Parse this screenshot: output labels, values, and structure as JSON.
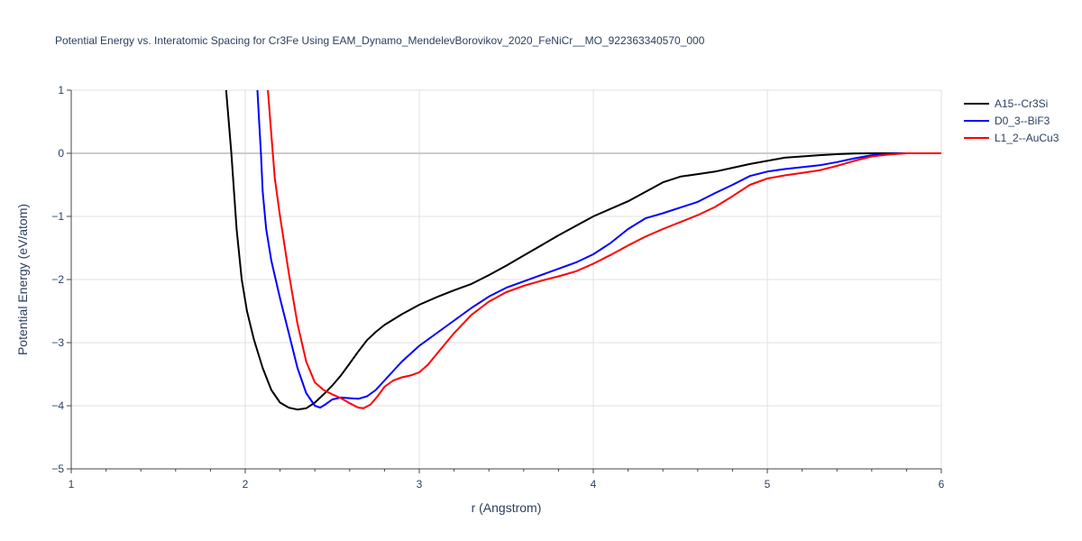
{
  "chart_data": {
    "type": "line",
    "title": "Potential Energy vs. Interatomic Spacing for Cr3Fe Using EAM_Dynamo_MendelevBorovikov_2020_FeNiCr__MO_922363340570_000",
    "xlabel": "r (Angstrom)",
    "ylabel": "Potential Energy (eV/atom)",
    "xlim": [
      1,
      6
    ],
    "ylim": [
      -5,
      1
    ],
    "xticks": [
      1,
      2,
      3,
      4,
      5,
      6
    ],
    "yticks": [
      -5,
      -4,
      -3,
      -2,
      -1,
      0,
      1
    ],
    "xtick_labels": [
      "1",
      "2",
      "3",
      "4",
      "5",
      "6"
    ],
    "ytick_labels": [
      "−5",
      "−4",
      "−3",
      "−2",
      "−1",
      "0",
      "1"
    ],
    "grid": true,
    "legend_position": "top-right",
    "series": [
      {
        "name": "A15--Cr3Si",
        "color": "#000000",
        "x": [
          1.89,
          1.92,
          1.95,
          1.98,
          2.01,
          2.05,
          2.1,
          2.15,
          2.2,
          2.25,
          2.3,
          2.35,
          2.4,
          2.45,
          2.5,
          2.55,
          2.6,
          2.65,
          2.7,
          2.75,
          2.8,
          2.9,
          3.0,
          3.1,
          3.2,
          3.3,
          3.4,
          3.5,
          3.6,
          3.7,
          3.8,
          3.9,
          4.0,
          4.1,
          4.2,
          4.3,
          4.4,
          4.5,
          4.6,
          4.7,
          4.8,
          4.9,
          5.0,
          5.1,
          5.2,
          5.3,
          5.4,
          5.5,
          5.6,
          5.7,
          5.8,
          6.0
        ],
        "y": [
          1.0,
          0.0,
          -1.2,
          -2.0,
          -2.5,
          -2.95,
          -3.4,
          -3.75,
          -3.95,
          -4.03,
          -4.06,
          -4.04,
          -3.95,
          -3.82,
          -3.68,
          -3.52,
          -3.33,
          -3.14,
          -2.96,
          -2.83,
          -2.72,
          -2.55,
          -2.4,
          -2.28,
          -2.17,
          -2.07,
          -1.93,
          -1.78,
          -1.62,
          -1.46,
          -1.3,
          -1.15,
          -1.0,
          -0.88,
          -0.76,
          -0.61,
          -0.46,
          -0.37,
          -0.33,
          -0.29,
          -0.23,
          -0.17,
          -0.12,
          -0.07,
          -0.05,
          -0.03,
          -0.015,
          -0.005,
          0.0,
          0.0,
          0.0,
          0.0
        ]
      },
      {
        "name": "D0_3--BiF3",
        "color": "#0000ff",
        "x": [
          2.07,
          2.08,
          2.09,
          2.1,
          2.12,
          2.15,
          2.2,
          2.25,
          2.3,
          2.35,
          2.4,
          2.43,
          2.46,
          2.5,
          2.55,
          2.6,
          2.65,
          2.7,
          2.75,
          2.8,
          2.9,
          3.0,
          3.1,
          3.2,
          3.3,
          3.4,
          3.5,
          3.6,
          3.7,
          3.8,
          3.9,
          4.0,
          4.1,
          4.2,
          4.3,
          4.4,
          4.5,
          4.6,
          4.7,
          4.8,
          4.9,
          5.0,
          5.1,
          5.2,
          5.3,
          5.4,
          5.5,
          5.6,
          5.7,
          5.8,
          6.0
        ],
        "y": [
          1.0,
          0.5,
          0.0,
          -0.6,
          -1.2,
          -1.7,
          -2.3,
          -2.85,
          -3.4,
          -3.8,
          -4.0,
          -4.03,
          -3.98,
          -3.9,
          -3.87,
          -3.88,
          -3.89,
          -3.85,
          -3.75,
          -3.6,
          -3.3,
          -3.05,
          -2.85,
          -2.65,
          -2.45,
          -2.27,
          -2.13,
          -2.03,
          -1.93,
          -1.83,
          -1.73,
          -1.6,
          -1.42,
          -1.2,
          -1.03,
          -0.95,
          -0.86,
          -0.77,
          -0.63,
          -0.5,
          -0.36,
          -0.29,
          -0.25,
          -0.22,
          -0.19,
          -0.14,
          -0.08,
          -0.03,
          -0.01,
          0.0,
          0.0
        ]
      },
      {
        "name": "L1_2--AuCu3",
        "color": "#ff0000",
        "x": [
          2.13,
          2.15,
          2.17,
          2.2,
          2.25,
          2.3,
          2.35,
          2.4,
          2.45,
          2.5,
          2.55,
          2.6,
          2.65,
          2.68,
          2.72,
          2.76,
          2.8,
          2.85,
          2.9,
          2.95,
          3.0,
          3.05,
          3.1,
          3.2,
          3.3,
          3.4,
          3.5,
          3.6,
          3.7,
          3.8,
          3.9,
          4.0,
          4.1,
          4.2,
          4.3,
          4.4,
          4.5,
          4.6,
          4.7,
          4.8,
          4.9,
          5.0,
          5.1,
          5.2,
          5.3,
          5.4,
          5.5,
          5.6,
          5.7,
          5.8,
          6.0
        ],
        "y": [
          1.0,
          0.3,
          -0.4,
          -1.0,
          -1.9,
          -2.7,
          -3.3,
          -3.63,
          -3.75,
          -3.82,
          -3.88,
          -3.96,
          -4.03,
          -4.04,
          -3.98,
          -3.85,
          -3.7,
          -3.6,
          -3.55,
          -3.52,
          -3.47,
          -3.35,
          -3.18,
          -2.85,
          -2.56,
          -2.35,
          -2.2,
          -2.1,
          -2.02,
          -1.95,
          -1.87,
          -1.75,
          -1.61,
          -1.46,
          -1.32,
          -1.2,
          -1.09,
          -0.98,
          -0.85,
          -0.68,
          -0.5,
          -0.4,
          -0.35,
          -0.31,
          -0.27,
          -0.2,
          -0.12,
          -0.05,
          -0.02,
          0.0,
          0.0
        ]
      }
    ]
  }
}
